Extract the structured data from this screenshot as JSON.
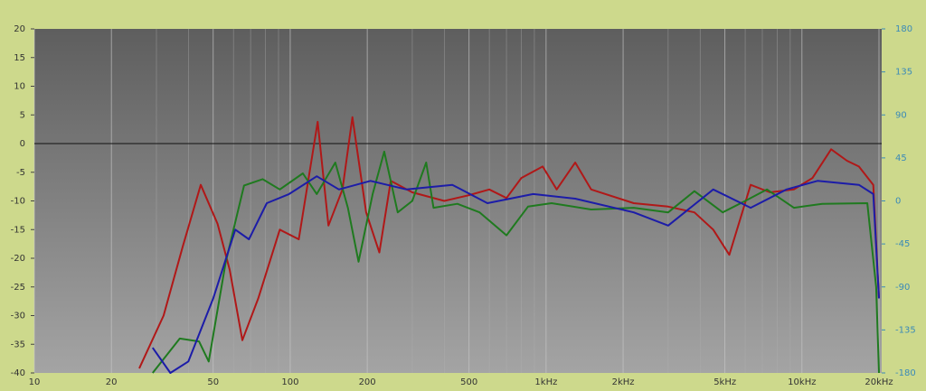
{
  "chart_data": {
    "type": "line",
    "x_scale": "log",
    "grid": true,
    "xlim": [
      10,
      20000
    ],
    "ylim": [
      -40,
      20
    ],
    "y2lim": [
      -180,
      180
    ],
    "xticks": [
      10,
      20,
      50,
      100,
      200,
      500,
      {
        "value": 1000,
        "label": "1kHz"
      },
      {
        "value": 2000,
        "label": "2kHz"
      },
      {
        "value": 5000,
        "label": "5kHz"
      },
      {
        "value": 10000,
        "label": "10kHz"
      },
      {
        "value": 20000,
        "label": "20kHz"
      }
    ],
    "x_minor_ticks": [
      30,
      40,
      60,
      70,
      80,
      90,
      300,
      400,
      600,
      700,
      800,
      900,
      3000,
      4000,
      6000,
      7000,
      8000,
      9000
    ],
    "yticks": [
      -40,
      -35,
      -30,
      -25,
      -20,
      -15,
      -10,
      -5,
      0,
      5,
      10,
      15,
      20
    ],
    "y2ticks": [
      -180,
      -135,
      -90,
      -45,
      0,
      45,
      90,
      135,
      180
    ],
    "series": [
      {
        "color": "#b01818",
        "x": [
          25.7,
          32,
          38,
          44.7,
          52,
          58,
          65,
          75,
          91,
          108,
          128,
          141,
          160,
          175,
          198,
          223,
          247,
          300,
          400,
          500,
          600,
          700,
          800,
          970,
          1100,
          1300,
          1500,
          2200,
          3000,
          3800,
          4500,
          5200,
          6300,
          7500,
          9300,
          11000,
          13000,
          15000,
          16700,
          19000,
          20000
        ],
        "values": [
          -39.2,
          -30,
          -18,
          -7.2,
          -14,
          -22,
          -34.3,
          -27,
          -15,
          -16.7,
          3.8,
          -14.3,
          -8,
          4.6,
          -12,
          -19,
          -6.5,
          -8.5,
          -10,
          -9,
          -8,
          -9.5,
          -6,
          -4,
          -8,
          -3.3,
          -8,
          -10.4,
          -11,
          -12,
          -15,
          -19.4,
          -7.2,
          -8.5,
          -8,
          -6,
          -1,
          -3,
          -4,
          -7.2,
          -27
        ]
      },
      {
        "color": "#1f7a1f",
        "x": [
          29,
          37,
          44,
          48,
          56,
          66,
          78,
          91,
          112,
          127,
          150,
          168,
          185,
          210,
          233,
          263,
          300,
          340,
          363,
          450,
          550,
          700,
          850,
          1050,
          1500,
          2200,
          3000,
          3800,
          4900,
          6000,
          7300,
          9300,
          12000,
          18000,
          19500,
          20000
        ],
        "values": [
          -40,
          -34,
          -34.5,
          -38,
          -20.6,
          -7.3,
          -6.2,
          -8,
          -5.2,
          -8.8,
          -3.3,
          -11.2,
          -20.6,
          -8.8,
          -1.4,
          -12,
          -10,
          -3.3,
          -11.2,
          -10.5,
          -12,
          -16,
          -11,
          -10.4,
          -11.5,
          -11.2,
          -12,
          -8.3,
          -12,
          -10,
          -8,
          -11.2,
          -10.5,
          -10.4,
          -25,
          -40
        ]
      },
      {
        "color": "#1c1ca8",
        "x": [
          29,
          34,
          40,
          50,
          61,
          69,
          81,
          99,
          127,
          155,
          206,
          285,
          430,
          590,
          890,
          1300,
          2200,
          3000,
          4500,
          6300,
          8700,
          11500,
          16700,
          19000,
          20000
        ],
        "values": [
          -35.6,
          -40,
          -38,
          -27,
          -15,
          -16.7,
          -10.4,
          -8.8,
          -5.7,
          -8,
          -6.5,
          -8,
          -7.2,
          -10.4,
          -8.8,
          -9.6,
          -12,
          -14.3,
          -8,
          -11.2,
          -8,
          -6.5,
          -7.2,
          -8.8,
          -27
        ]
      }
    ]
  }
}
